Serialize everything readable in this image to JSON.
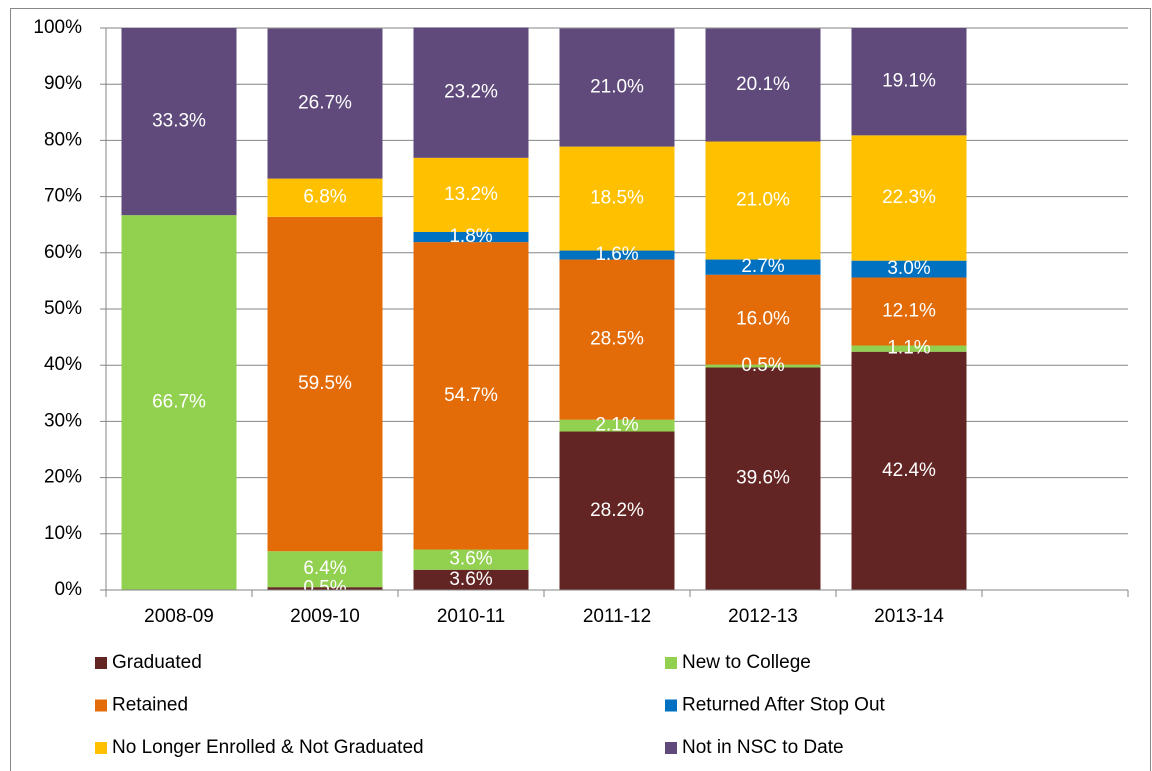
{
  "chart_data": {
    "type": "stacked_bar",
    "categories": [
      "2008-09",
      "2009-10",
      "2010-11",
      "2011-12",
      "2012-13",
      "2013-14",
      null
    ],
    "series": [
      {
        "name": "Graduated",
        "color": "#632523",
        "values": [
          null,
          0.5,
          3.6,
          28.2,
          39.6,
          42.4,
          null
        ],
        "value_labels": [
          null,
          "0.5%",
          "3.6%",
          "28.2%",
          "39.6%",
          "42.4%",
          null
        ]
      },
      {
        "name": "New to College",
        "color": "#92d050",
        "values": [
          66.7,
          6.4,
          3.6,
          2.1,
          0.5,
          1.1,
          null
        ],
        "value_labels": [
          "66.7%",
          "6.4%",
          "3.6%",
          "2.1%",
          "0.5%",
          "1.1%",
          null
        ]
      },
      {
        "name": "Retained",
        "color": "#e36c09",
        "values": [
          null,
          59.5,
          54.7,
          28.5,
          16.0,
          12.1,
          null
        ],
        "value_labels": [
          null,
          "59.5%",
          "54.7%",
          "28.5%",
          "16.0%",
          "12.1%",
          null
        ]
      },
      {
        "name": "Returned After Stop Out",
        "color": "#0070c0",
        "values": [
          null,
          null,
          1.8,
          1.6,
          2.7,
          3.0,
          null
        ],
        "value_labels": [
          null,
          null,
          "1.8%",
          "1.6%",
          "2.7%",
          "3.0%",
          null
        ]
      },
      {
        "name": "No Longer Enrolled & Not Graduated",
        "color": "#ffc000",
        "values": [
          null,
          6.8,
          13.2,
          18.5,
          21.0,
          22.3,
          null
        ],
        "value_labels": [
          null,
          "6.8%",
          "13.2%",
          "18.5%",
          "21.0%",
          "22.3%",
          null
        ]
      },
      {
        "name": "Not in NSC to Date",
        "color": "#604a7b",
        "values": [
          33.3,
          26.7,
          23.2,
          21.0,
          20.1,
          19.1,
          null
        ],
        "value_labels": [
          "33.3%",
          "26.7%",
          "23.2%",
          "21.0%",
          "20.1%",
          "19.1%",
          null
        ]
      }
    ],
    "ylim": [
      0,
      100
    ],
    "yticks": [
      {
        "value": 0,
        "label": "0%"
      },
      {
        "value": 10,
        "label": "10%"
      },
      {
        "value": 20,
        "label": "20%"
      },
      {
        "value": 30,
        "label": "30%"
      },
      {
        "value": 40,
        "label": "40%"
      },
      {
        "value": 50,
        "label": "50%"
      },
      {
        "value": 60,
        "label": "60%"
      },
      {
        "value": 70,
        "label": "70%"
      },
      {
        "value": 80,
        "label": "80%"
      },
      {
        "value": 90,
        "label": "90%"
      },
      {
        "value": 100,
        "label": "100%"
      }
    ],
    "grid": true,
    "legend": "bottom"
  }
}
